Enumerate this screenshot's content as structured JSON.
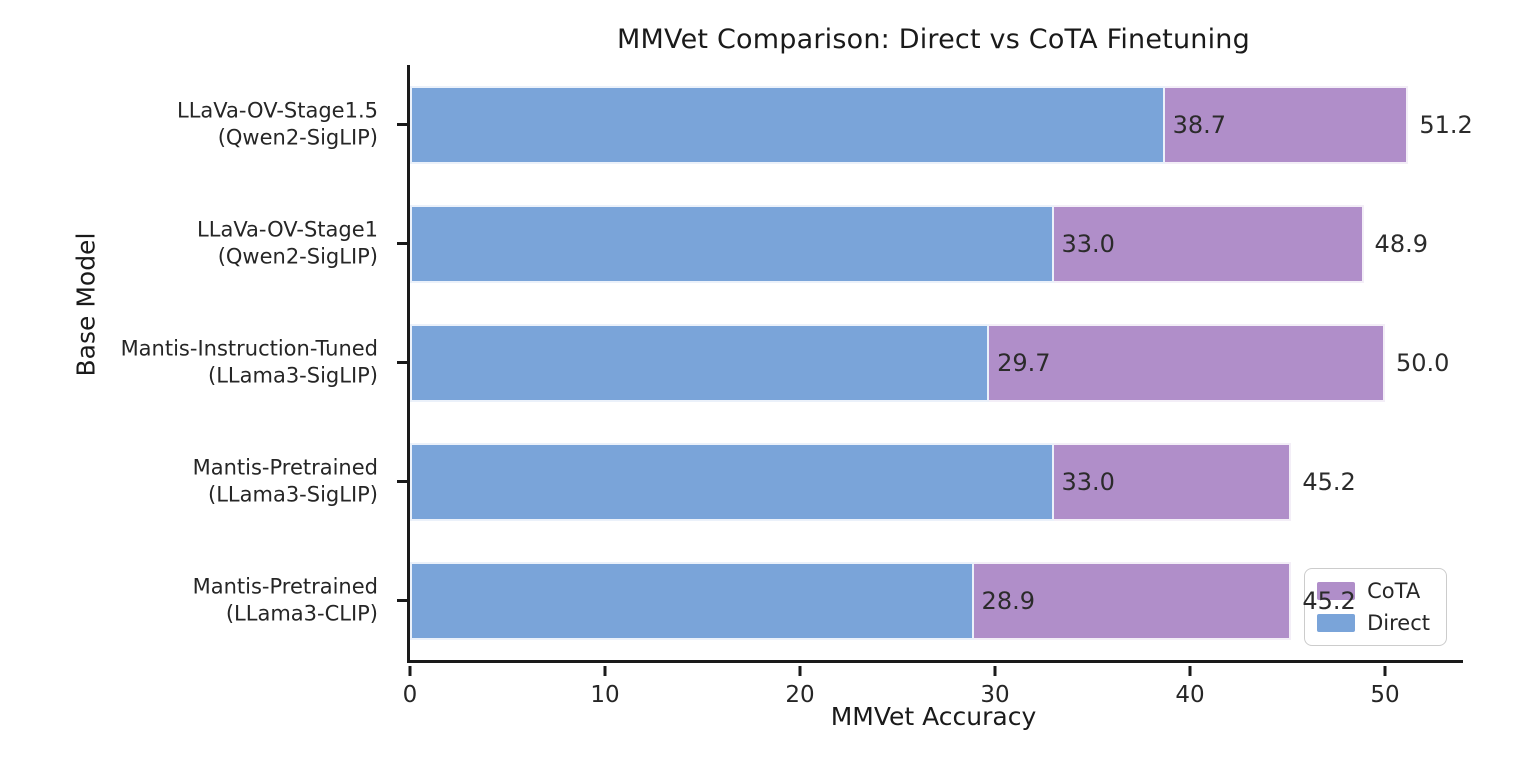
{
  "figure": {
    "background": "#ffffff",
    "text_color": "#1a1a1a"
  },
  "chart_data": {
    "type": "bar",
    "orientation": "horizontal",
    "title": "MMVet Comparison: Direct vs CoTA Finetuning",
    "xlabel": "MMVet Accuracy",
    "ylabel": "Base Model",
    "xlim": [
      0,
      54
    ],
    "x_ticks": [
      "0",
      "10",
      "20",
      "30",
      "40",
      "50"
    ],
    "x_tick_values": [
      0,
      10,
      20,
      30,
      40,
      50
    ],
    "grid": false,
    "categories": [
      [
        "LLaVa-OV-Stage1.5",
        "(Qwen2-SigLIP)"
      ],
      [
        "LLaVa-OV-Stage1",
        "(Qwen2-SigLIP)"
      ],
      [
        "Mantis-Instruction-Tuned",
        "(LLama3-SigLIP)"
      ],
      [
        "Mantis-Pretrained",
        "(LLama3-SigLIP)"
      ],
      [
        "Mantis-Pretrained",
        "(LLama3-CLIP)"
      ]
    ],
    "series": [
      {
        "name": "CoTA",
        "color": "#b08ec9",
        "values": [
          51.2,
          48.9,
          50.0,
          45.2,
          45.2
        ]
      },
      {
        "name": "Direct",
        "color": "#7aa4d9",
        "values": [
          38.7,
          33.0,
          29.7,
          33.0,
          28.9
        ]
      }
    ],
    "bar_value_labels": {
      "direct": [
        "38.7",
        "33.0",
        "29.7",
        "33.0",
        "28.9"
      ],
      "cota": [
        "51.2",
        "48.9",
        "50.0",
        "45.2",
        "45.2"
      ]
    },
    "legend": {
      "position": "lower-right",
      "entries": [
        {
          "label": "CoTA",
          "color": "#b08ec9"
        },
        {
          "label": "Direct",
          "color": "#7aa4d9"
        }
      ]
    }
  }
}
